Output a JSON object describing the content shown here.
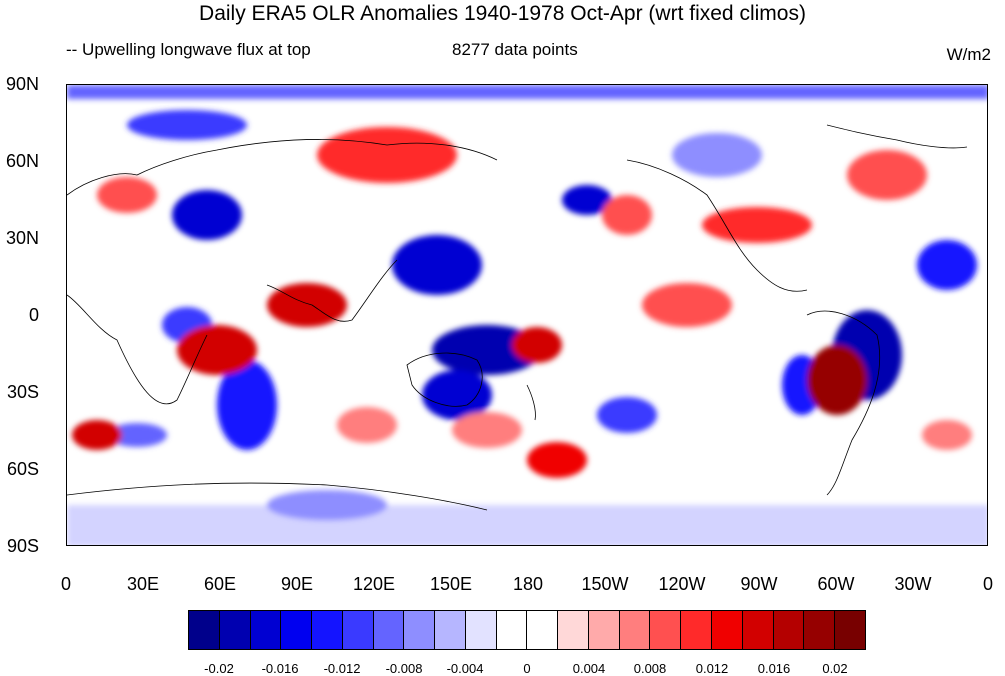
{
  "title": "Daily ERA5 OLR Anomalies 1940-1978 Oct-Apr (wrt fixed climos)",
  "left_string": "-- Upwelling longwave flux at top",
  "center_string": "8277 data points",
  "right_string": "W/m2",
  "y_axis_labels": [
    "90N",
    "60N",
    "30N",
    "0",
    "30S",
    "60S",
    "90S"
  ],
  "x_axis_labels": [
    "0",
    "30E",
    "60E",
    "90E",
    "120E",
    "150E",
    "180",
    "150W",
    "120W",
    "90W",
    "60W",
    "30W",
    "0"
  ],
  "colorbar": {
    "colors": [
      "#00008b",
      "#0000b0",
      "#0000d2",
      "#0000f0",
      "#1414ff",
      "#3a3aff",
      "#6464ff",
      "#8e8eff",
      "#b6b6ff",
      "#e2e2ff",
      "#ffffff",
      "#ffffff",
      "#ffd8d8",
      "#ffaaaa",
      "#ff7e7e",
      "#ff5050",
      "#ff2a2a",
      "#f00000",
      "#d20000",
      "#b40000",
      "#960000",
      "#780000"
    ],
    "labels": [
      "-0.02",
      "-0.016",
      "-0.012",
      "-0.008",
      "-0.004",
      "0",
      "0.004",
      "0.008",
      "0.012",
      "0.016",
      "0.02"
    ]
  },
  "map": {
    "projection": "cylindrical equidistant",
    "lon_range": [
      0,
      360
    ],
    "lat_range": [
      -90,
      90
    ],
    "variable": "OLR anomaly",
    "units": "W/m2"
  }
}
